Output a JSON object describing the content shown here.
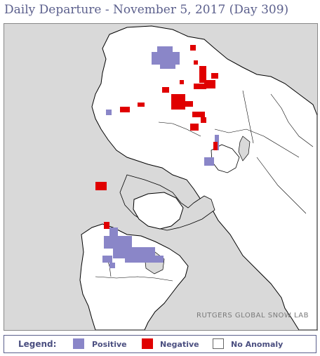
{
  "header": {
    "title": "Daily Departure - November 5, 2017 (Day 309)"
  },
  "map": {
    "credit": "RUTGERS GLOBAL SNOW LAB",
    "colors": {
      "ocean": "#d9d9d9",
      "land": "#ffffff",
      "positive": "#8a86c8",
      "negative": "#e00000",
      "borders": "#000000"
    }
  },
  "legend": {
    "label": "Legend:",
    "items": [
      {
        "label": "Positive",
        "color": "#8a86c8"
      },
      {
        "label": "Negative",
        "color": "#e00000"
      },
      {
        "label": "No Anomaly",
        "color": "#ffffff"
      }
    ]
  }
}
